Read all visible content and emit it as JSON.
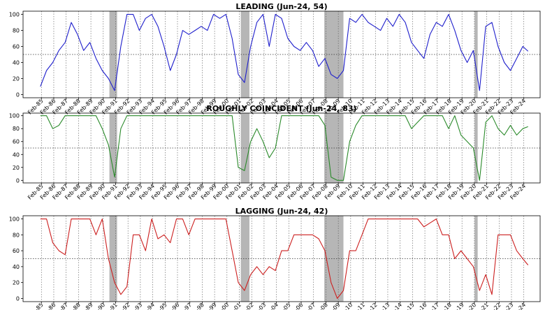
{
  "chart_data": [
    {
      "type": "line",
      "title": "LEADING (Jun-24, 54)",
      "color": "#1f1fcc",
      "ylim": [
        -4,
        104
      ],
      "yticks": [
        0,
        20,
        40,
        60,
        80,
        100
      ],
      "reference_line": 50,
      "x_tick_labels": [
        "Feb-85",
        "Feb-86",
        "Feb-87",
        "Feb-88",
        "Feb-89",
        "Feb-90",
        "Feb-91",
        "Feb-92",
        "Feb-93",
        "Feb-94",
        "Feb-95",
        "Feb-96",
        "Feb-97",
        "Feb-98",
        "Feb-99",
        "Feb-00",
        "Feb-01",
        "Feb-02",
        "Feb-03",
        "Feb-04",
        "Feb-05",
        "Feb-06",
        "Feb-07",
        "Feb-08",
        "Feb-09",
        "Feb-10",
        "Feb-11",
        "Feb-12",
        "Feb-13",
        "Feb-14",
        "Feb-15",
        "Feb-16",
        "Feb-17",
        "Feb-18",
        "Feb-19",
        "Feb-20",
        "Feb-21",
        "Feb-22",
        "Feb-23",
        "Feb-24"
      ],
      "recessions": [
        [
          1990.58,
          1991.2
        ],
        [
          2001.2,
          2001.9
        ],
        [
          2007.95,
          2009.5
        ],
        [
          2020.1,
          2020.35
        ]
      ],
      "x": [
        1985.0,
        1985.5,
        1986.0,
        1986.5,
        1987.0,
        1987.5,
        1988.0,
        1988.5,
        1989.0,
        1989.5,
        1990.0,
        1990.5,
        1991.0,
        1991.5,
        1992.0,
        1992.5,
        1993.0,
        1993.5,
        1994.0,
        1994.5,
        1995.0,
        1995.5,
        1996.0,
        1996.5,
        1997.0,
        1997.5,
        1998.0,
        1998.5,
        1999.0,
        1999.5,
        2000.0,
        2000.5,
        2001.0,
        2001.5,
        2002.0,
        2002.5,
        2003.0,
        2003.5,
        2004.0,
        2004.5,
        2005.0,
        2005.5,
        2006.0,
        2006.5,
        2007.0,
        2007.5,
        2008.0,
        2008.5,
        2009.0,
        2009.5,
        2010.0,
        2010.5,
        2011.0,
        2011.5,
        2012.0,
        2012.5,
        2013.0,
        2013.5,
        2014.0,
        2014.5,
        2015.0,
        2015.5,
        2016.0,
        2016.5,
        2017.0,
        2017.5,
        2018.0,
        2018.5,
        2019.0,
        2019.5,
        2020.0,
        2020.5,
        2021.0,
        2021.5,
        2022.0,
        2022.5,
        2023.0,
        2023.5,
        2024.0,
        2024.42
      ],
      "y": [
        10,
        30,
        40,
        55,
        65,
        90,
        75,
        55,
        65,
        45,
        30,
        20,
        5,
        60,
        100,
        100,
        80,
        95,
        100,
        85,
        60,
        30,
        50,
        80,
        75,
        80,
        85,
        80,
        100,
        95,
        100,
        70,
        25,
        15,
        60,
        90,
        100,
        60,
        100,
        95,
        70,
        60,
        55,
        65,
        55,
        35,
        45,
        25,
        20,
        30,
        95,
        90,
        100,
        90,
        85,
        80,
        95,
        85,
        100,
        90,
        65,
        55,
        45,
        75,
        90,
        85,
        100,
        80,
        55,
        40,
        55,
        5,
        85,
        90,
        60,
        40,
        30,
        45,
        60,
        54
      ]
    },
    {
      "type": "line",
      "title": "ROUGHLY COINCIDENT (Jun-24, 83)",
      "color": "#2a8a2a",
      "ylim": [
        -4,
        104
      ],
      "yticks": [
        0,
        20,
        40,
        60,
        80,
        100
      ],
      "reference_line": 50,
      "x_tick_labels": [
        "Feb-85",
        "Feb-86",
        "Feb-87",
        "Feb-88",
        "Feb-89",
        "Feb-90",
        "Feb-91",
        "Feb-92",
        "Feb-93",
        "Feb-94",
        "Feb-95",
        "Feb-96",
        "Feb-97",
        "Feb-98",
        "Feb-99",
        "Feb-00",
        "Feb-01",
        "Feb-02",
        "Feb-03",
        "Feb-04",
        "Feb-05",
        "Feb-06",
        "Feb-07",
        "Feb-08",
        "Feb-09",
        "Feb-10",
        "Feb-11",
        "Feb-12",
        "Feb-13",
        "Feb-14",
        "Feb-15",
        "Feb-16",
        "Feb-17",
        "Feb-18",
        "Feb-19",
        "Feb-20",
        "Feb-21",
        "Feb-22",
        "Feb-23",
        "Feb-24"
      ],
      "recessions": [
        [
          1990.58,
          1991.2
        ],
        [
          2001.2,
          2001.9
        ],
        [
          2007.95,
          2009.5
        ],
        [
          2020.1,
          2020.35
        ]
      ],
      "x": [
        1985.0,
        1985.5,
        1986.0,
        1986.5,
        1987.0,
        1987.5,
        1988.0,
        1988.5,
        1989.0,
        1989.5,
        1990.0,
        1990.5,
        1991.0,
        1991.5,
        1992.0,
        1992.5,
        1993.0,
        1993.5,
        1994.0,
        1994.5,
        1995.0,
        1995.5,
        1996.0,
        1996.5,
        1997.0,
        1997.5,
        1998.0,
        1998.5,
        1999.0,
        1999.5,
        2000.0,
        2000.5,
        2001.0,
        2001.5,
        2002.0,
        2002.5,
        2003.0,
        2003.5,
        2004.0,
        2004.5,
        2005.0,
        2005.5,
        2006.0,
        2006.5,
        2007.0,
        2007.5,
        2008.0,
        2008.5,
        2009.0,
        2009.5,
        2010.0,
        2010.5,
        2011.0,
        2011.5,
        2012.0,
        2012.5,
        2013.0,
        2013.5,
        2014.0,
        2014.5,
        2015.0,
        2015.5,
        2016.0,
        2016.5,
        2017.0,
        2017.5,
        2018.0,
        2018.5,
        2019.0,
        2019.5,
        2020.0,
        2020.5,
        2021.0,
        2021.5,
        2022.0,
        2022.5,
        2023.0,
        2023.5,
        2024.0,
        2024.42
      ],
      "y": [
        100,
        100,
        80,
        85,
        100,
        100,
        100,
        100,
        100,
        100,
        80,
        55,
        5,
        80,
        100,
        100,
        100,
        100,
        100,
        100,
        100,
        100,
        100,
        100,
        100,
        100,
        100,
        100,
        100,
        100,
        100,
        100,
        20,
        15,
        60,
        80,
        60,
        35,
        50,
        100,
        100,
        100,
        100,
        100,
        100,
        100,
        85,
        5,
        0,
        0,
        60,
        85,
        100,
        100,
        100,
        100,
        100,
        100,
        100,
        100,
        80,
        90,
        100,
        100,
        100,
        100,
        80,
        100,
        70,
        60,
        50,
        0,
        90,
        100,
        80,
        70,
        85,
        70,
        80,
        83
      ]
    },
    {
      "type": "line",
      "title": "LAGGING (Jun-24, 42)",
      "color": "#cc1f1f",
      "ylim": [
        -4,
        104
      ],
      "yticks": [
        0,
        20,
        40,
        60,
        80,
        100
      ],
      "reference_line": 50,
      "x_tick_labels": [
        "Feb-85",
        "Feb-86",
        "Feb-87",
        "Feb-88",
        "Feb-89",
        "Feb-90",
        "Feb-91",
        "Feb-92",
        "Feb-93",
        "Feb-94",
        "Feb-95",
        "Feb-96",
        "Feb-97",
        "Feb-98",
        "Feb-99",
        "Feb-00",
        "Feb-01",
        "Feb-02",
        "Feb-03",
        "Feb-04",
        "Feb-05",
        "Feb-06",
        "Feb-07",
        "Feb-08",
        "Feb-09",
        "Feb-10",
        "Feb-11",
        "Feb-12",
        "Feb-13",
        "Feb-14",
        "Feb-15",
        "Feb-16",
        "Feb-17",
        "Feb-18",
        "Feb-19",
        "Feb-20",
        "Feb-21",
        "Feb-22",
        "Feb-23",
        "Feb-24"
      ],
      "recessions": [
        [
          1990.58,
          1991.2
        ],
        [
          2001.2,
          2001.9
        ],
        [
          2007.95,
          2009.5
        ],
        [
          2020.1,
          2020.35
        ]
      ],
      "x": [
        1985.0,
        1985.5,
        1986.0,
        1986.5,
        1987.0,
        1987.5,
        1988.0,
        1988.5,
        1989.0,
        1989.5,
        1990.0,
        1990.5,
        1991.0,
        1991.5,
        1992.0,
        1992.5,
        1993.0,
        1993.5,
        1994.0,
        1994.5,
        1995.0,
        1995.5,
        1996.0,
        1996.5,
        1997.0,
        1997.5,
        1998.0,
        1998.5,
        1999.0,
        1999.5,
        2000.0,
        2000.5,
        2001.0,
        2001.5,
        2002.0,
        2002.5,
        2003.0,
        2003.5,
        2004.0,
        2004.5,
        2005.0,
        2005.5,
        2006.0,
        2006.5,
        2007.0,
        2007.5,
        2008.0,
        2008.5,
        2009.0,
        2009.5,
        2010.0,
        2010.5,
        2011.0,
        2011.5,
        2012.0,
        2012.5,
        2013.0,
        2013.5,
        2014.0,
        2014.5,
        2015.0,
        2015.5,
        2016.0,
        2016.5,
        2017.0,
        2017.5,
        2018.0,
        2018.5,
        2019.0,
        2019.5,
        2020.0,
        2020.5,
        2021.0,
        2021.5,
        2022.0,
        2022.5,
        2023.0,
        2023.5,
        2024.0,
        2024.42
      ],
      "y": [
        100,
        100,
        70,
        60,
        55,
        100,
        100,
        100,
        100,
        80,
        100,
        50,
        20,
        5,
        15,
        80,
        80,
        60,
        100,
        75,
        80,
        70,
        100,
        100,
        80,
        100,
        100,
        100,
        100,
        100,
        100,
        60,
        20,
        10,
        30,
        40,
        30,
        40,
        35,
        60,
        60,
        80,
        80,
        80,
        80,
        75,
        60,
        20,
        0,
        10,
        60,
        60,
        80,
        100,
        100,
        100,
        100,
        100,
        100,
        100,
        100,
        100,
        90,
        95,
        100,
        80,
        80,
        50,
        60,
        50,
        40,
        10,
        30,
        5,
        80,
        80,
        80,
        60,
        50,
        42
      ]
    }
  ]
}
